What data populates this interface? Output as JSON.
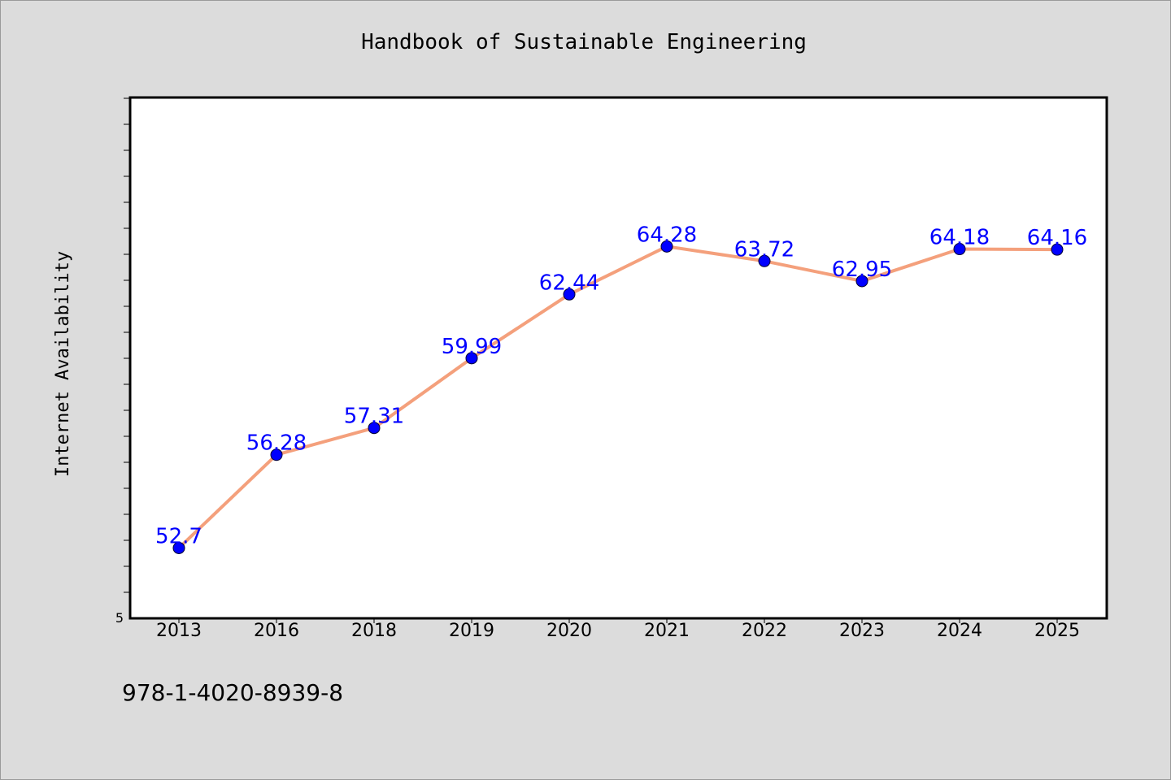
{
  "chart_data": {
    "type": "line",
    "title": "Handbook of Sustainable Engineering",
    "xlabel": "",
    "ylabel": "Internet Availability",
    "categories": [
      "2013",
      "2016",
      "2018",
      "2019",
      "2020",
      "2021",
      "2022",
      "2023",
      "2024",
      "2025"
    ],
    "series": [
      {
        "values": [
          52.7,
          56.28,
          57.31,
          59.99,
          62.44,
          64.28,
          63.72,
          62.95,
          64.18,
          64.16
        ],
        "data_labels": [
          "52.7",
          "56.28",
          "57.31",
          "59.99",
          "62.44",
          "64.28",
          "63.72",
          "62.95",
          "64.18",
          "64.16"
        ]
      }
    ],
    "y_tick_labels": [
      "5"
    ],
    "ylim": [
      50,
      70
    ],
    "grid": false,
    "legend": "none",
    "colors": {
      "line": "#f4a07c",
      "marker": "#0000ff",
      "data_label": "#0000ff",
      "plot_background": "#ffffff",
      "figure_background": "#dcdcdc"
    }
  },
  "footer": {
    "isbn": "978-1-4020-8939-8"
  }
}
